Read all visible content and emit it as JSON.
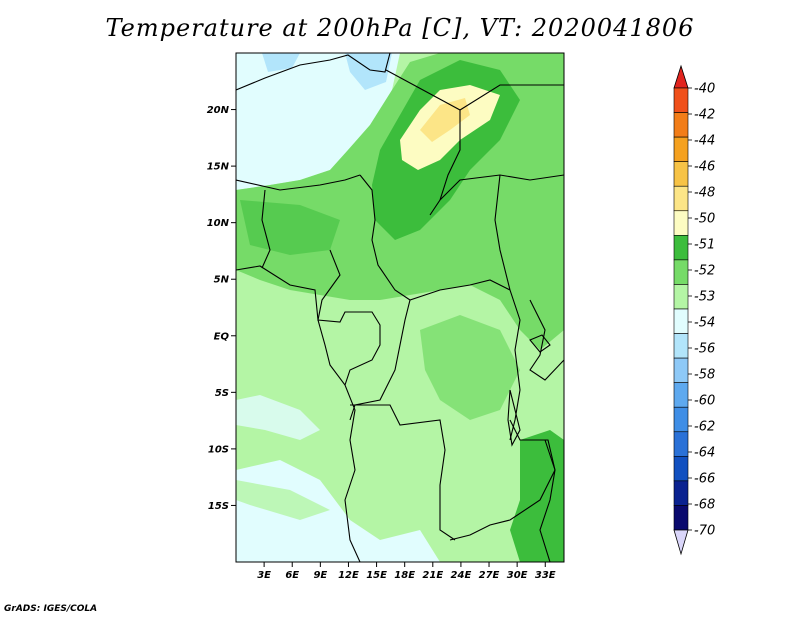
{
  "title": "Temperature at 200hPa [C], VT: 2020041806",
  "credit": "GrADS: IGES/COLA",
  "map": {
    "lat_labels": [
      "20N",
      "15N",
      "10N",
      "5N",
      "EQ",
      "5S",
      "10S",
      "15S"
    ],
    "lat_values": [
      20,
      15,
      10,
      5,
      0,
      -5,
      -10,
      -15
    ],
    "lon_labels": [
      "3E",
      "6E",
      "9E",
      "12E",
      "15E",
      "18E",
      "21E",
      "24E",
      "27E",
      "30E",
      "33E"
    ],
    "lon_values": [
      3,
      6,
      9,
      12,
      15,
      18,
      21,
      24,
      27,
      30,
      33
    ],
    "extent": {
      "lon": [
        0,
        35
      ],
      "lat": [
        -20,
        25
      ]
    }
  },
  "colorbar": {
    "labels": [
      "-40",
      "-42",
      "-44",
      "-46",
      "-48",
      "-50",
      "-51",
      "-52",
      "-53",
      "-54",
      "-56",
      "-58",
      "-60",
      "-62",
      "-64",
      "-66",
      "-68",
      "-70"
    ],
    "colors": [
      "#f01010",
      "#f0501a",
      "#f27d18",
      "#f5a11f",
      "#f7c346",
      "#fce587",
      "#fdfcc2",
      "#3cbd3c",
      "#76db68",
      "#b4f5a5",
      "#e1fdfe",
      "#b2e5fb",
      "#8ec9f7",
      "#5ea9ef",
      "#3f8ee6",
      "#2a71d7",
      "#1150c0",
      "#0a2290",
      "#0a0a6e"
    ],
    "top_color": "#e1241e",
    "bottom_color": "#dad6fa"
  }
}
